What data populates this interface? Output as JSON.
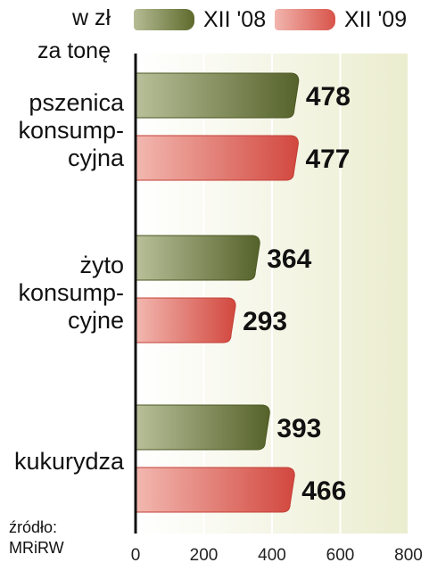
{
  "unit": {
    "line1": "w zł",
    "line2": "za tonę"
  },
  "source": {
    "line1": "źródło:",
    "line2": "MRiRW"
  },
  "chart_data": {
    "type": "bar",
    "orientation": "horizontal",
    "categories": [
      {
        "lines": [
          "pszenica",
          "konsump-",
          "cyjna"
        ]
      },
      {
        "lines": [
          "żyto",
          "konsump-",
          "cyjne"
        ]
      },
      {
        "lines": [
          "kukurydza"
        ]
      }
    ],
    "series": [
      {
        "name": "XII '08",
        "color": "#5e6a2c",
        "values": [
          478,
          364,
          393
        ]
      },
      {
        "name": "XII '09",
        "color": "#d8534a",
        "values": [
          477,
          293,
          466
        ]
      }
    ],
    "xlim": [
      0,
      800
    ],
    "xticks": [
      0,
      200,
      400,
      600,
      800
    ],
    "legend_position": "top",
    "grid": true
  }
}
